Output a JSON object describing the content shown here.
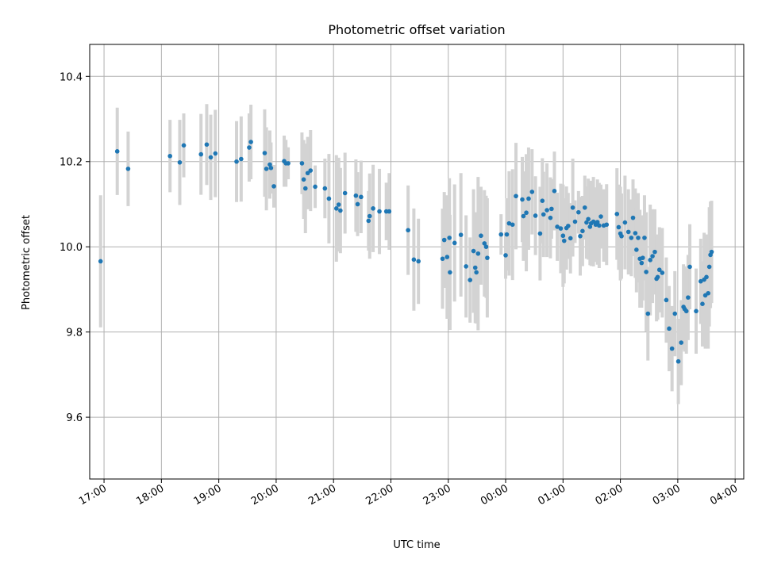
{
  "chart_data": {
    "type": "scatter",
    "title": "Photometric offset variation",
    "xlabel": "UTC time",
    "ylabel": "Photometric offset",
    "x_unit": "hours since 17:00 UTC",
    "xlim": [
      -0.25,
      11.15
    ],
    "ylim": [
      9.455,
      10.475
    ],
    "grid": true,
    "x_ticks": [
      {
        "x": 0,
        "label": "17:00"
      },
      {
        "x": 1,
        "label": "18:00"
      },
      {
        "x": 2,
        "label": "19:00"
      },
      {
        "x": 3,
        "label": "20:00"
      },
      {
        "x": 4,
        "label": "21:00"
      },
      {
        "x": 5,
        "label": "22:00"
      },
      {
        "x": 6,
        "label": "23:00"
      },
      {
        "x": 7,
        "label": "00:00"
      },
      {
        "x": 8,
        "label": "01:00"
      },
      {
        "x": 9,
        "label": "02:00"
      },
      {
        "x": 10,
        "label": "03:00"
      },
      {
        "x": 11,
        "label": "04:00"
      }
    ],
    "y_ticks": [
      {
        "y": 9.6,
        "label": "9.6"
      },
      {
        "y": 9.8,
        "label": "9.8"
      },
      {
        "y": 10.0,
        "label": "10.0"
      },
      {
        "y": 10.2,
        "label": "10.2"
      },
      {
        "y": 10.4,
        "label": "10.4"
      }
    ],
    "colors": {
      "points": "#1f77b4",
      "errorbars": "#d3d3d3",
      "grid": "#b0b0b0"
    },
    "points": [
      [
        -0.06,
        9.966,
        0.31
      ],
      [
        0.23,
        10.224,
        0.205
      ],
      [
        0.42,
        10.183,
        0.175
      ],
      [
        1.15,
        10.213,
        0.17
      ],
      [
        1.32,
        10.198,
        0.2
      ],
      [
        1.39,
        10.238,
        0.15
      ],
      [
        1.69,
        10.217,
        0.19
      ],
      [
        1.79,
        10.24,
        0.19
      ],
      [
        1.86,
        10.21,
        0.2
      ],
      [
        1.94,
        10.219,
        0.205
      ],
      [
        2.31,
        10.2,
        0.19
      ],
      [
        2.39,
        10.206,
        0.2
      ],
      [
        2.53,
        10.233,
        0.16
      ],
      [
        2.56,
        10.246,
        0.175
      ],
      [
        2.8,
        10.22,
        0.205
      ],
      [
        2.83,
        10.183,
        0.195
      ],
      [
        2.89,
        10.193,
        0.16
      ],
      [
        2.91,
        10.185,
        0.12
      ],
      [
        2.96,
        10.142,
        0.1
      ],
      [
        3.14,
        10.201,
        0.12
      ],
      [
        3.17,
        10.196,
        0.11
      ],
      [
        3.21,
        10.196,
        0.075
      ],
      [
        3.45,
        10.196,
        0.145
      ],
      [
        3.48,
        10.158,
        0.185
      ],
      [
        3.51,
        10.137,
        0.21
      ],
      [
        3.55,
        10.173,
        0.17
      ],
      [
        3.6,
        10.179,
        0.19
      ],
      [
        3.68,
        10.141,
        0.1
      ],
      [
        3.85,
        10.137,
        0.14
      ],
      [
        3.92,
        10.113,
        0.21
      ],
      [
        4.05,
        10.09,
        0.25
      ],
      [
        4.09,
        10.099,
        0.22
      ],
      [
        4.12,
        10.085,
        0.2
      ],
      [
        4.2,
        10.126,
        0.19
      ],
      [
        4.39,
        10.12,
        0.17
      ],
      [
        4.42,
        10.1,
        0.15
      ],
      [
        4.48,
        10.117,
        0.17
      ],
      [
        4.61,
        10.061,
        0.14
      ],
      [
        4.63,
        10.072,
        0.2
      ],
      [
        4.69,
        10.09,
        0.205
      ],
      [
        4.8,
        10.083,
        0.2
      ],
      [
        4.92,
        10.083,
        0.135
      ],
      [
        4.97,
        10.083,
        0.18
      ],
      [
        5.3,
        10.039,
        0.21
      ],
      [
        5.4,
        9.97,
        0.24
      ],
      [
        5.48,
        9.966,
        0.2
      ],
      [
        5.9,
        9.972,
        0.235
      ],
      [
        5.93,
        10.016,
        0.225
      ],
      [
        5.98,
        9.976,
        0.29
      ],
      [
        6.02,
        10.021,
        0.28
      ],
      [
        6.03,
        9.94,
        0.27
      ],
      [
        6.11,
        10.009,
        0.275
      ],
      [
        6.22,
        10.028,
        0.29
      ],
      [
        6.31,
        9.954,
        0.24
      ],
      [
        6.38,
        9.922,
        0.2
      ],
      [
        6.44,
        9.99,
        0.29
      ],
      [
        6.47,
        9.951,
        0.26
      ],
      [
        6.49,
        9.94,
        0.24
      ],
      [
        6.52,
        9.984,
        0.36
      ],
      [
        6.57,
        10.026,
        0.23
      ],
      [
        6.63,
        10.008,
        0.25
      ],
      [
        6.66,
        10.0,
        0.24
      ],
      [
        6.68,
        9.974,
        0.28
      ],
      [
        6.92,
        10.029,
        0.095
      ],
      [
        7.0,
        9.98,
        0.11
      ],
      [
        7.02,
        10.029,
        0.17
      ],
      [
        7.06,
        10.055,
        0.245
      ],
      [
        7.12,
        10.052,
        0.26
      ],
      [
        7.18,
        10.119,
        0.25
      ],
      [
        7.29,
        10.111,
        0.2
      ],
      [
        7.31,
        10.072,
        0.21
      ],
      [
        7.36,
        10.08,
        0.275
      ],
      [
        7.4,
        10.113,
        0.24
      ],
      [
        7.46,
        10.129,
        0.2
      ],
      [
        7.52,
        10.073,
        0.185
      ],
      [
        7.6,
        10.031,
        0.22
      ],
      [
        7.64,
        10.108,
        0.2
      ],
      [
        7.66,
        10.076,
        0.2
      ],
      [
        7.72,
        10.086,
        0.22
      ],
      [
        7.78,
        10.068,
        0.19
      ],
      [
        7.8,
        10.089,
        0.14
      ],
      [
        7.85,
        10.131,
        0.185
      ],
      [
        7.9,
        10.047,
        0.16
      ],
      [
        7.96,
        10.043,
        0.21
      ],
      [
        8.0,
        10.026,
        0.24
      ],
      [
        8.02,
        10.014,
        0.2
      ],
      [
        8.06,
        10.044,
        0.195
      ],
      [
        8.09,
        10.049,
        0.155
      ],
      [
        8.13,
        10.02,
        0.165
      ],
      [
        8.17,
        10.092,
        0.23
      ],
      [
        8.21,
        10.059,
        0.1
      ],
      [
        8.27,
        10.081,
        0.1
      ],
      [
        8.3,
        10.025,
        0.185
      ],
      [
        8.34,
        10.037,
        0.165
      ],
      [
        8.38,
        10.092,
        0.15
      ],
      [
        8.41,
        10.057,
        0.17
      ],
      [
        8.44,
        10.065,
        0.19
      ],
      [
        8.47,
        10.047,
        0.18
      ],
      [
        8.49,
        10.055,
        0.2
      ],
      [
        8.53,
        10.059,
        0.21
      ],
      [
        8.57,
        10.052,
        0.175
      ],
      [
        8.6,
        10.058,
        0.2
      ],
      [
        8.63,
        10.05,
        0.2
      ],
      [
        8.66,
        10.071,
        0.15
      ],
      [
        8.71,
        10.05,
        0.17
      ],
      [
        8.76,
        10.052,
        0.19
      ],
      [
        8.94,
        10.077,
        0.215
      ],
      [
        8.97,
        10.046,
        0.2
      ],
      [
        9.0,
        10.031,
        0.22
      ],
      [
        9.02,
        10.025,
        0.2
      ],
      [
        9.08,
        10.057,
        0.22
      ],
      [
        9.14,
        10.035,
        0.2
      ],
      [
        9.19,
        10.021,
        0.18
      ],
      [
        9.22,
        10.068,
        0.18
      ],
      [
        9.26,
        10.032,
        0.21
      ],
      [
        9.28,
        9.993,
        0.2
      ],
      [
        9.31,
        10.021,
        0.21
      ],
      [
        9.34,
        9.972,
        0.23
      ],
      [
        9.37,
        9.962,
        0.21
      ],
      [
        9.39,
        9.974,
        0.2
      ],
      [
        9.42,
        10.021,
        0.2
      ],
      [
        9.45,
        9.941,
        0.28
      ],
      [
        9.48,
        9.843,
        0.22
      ],
      [
        9.52,
        9.969,
        0.26
      ],
      [
        9.56,
        9.978,
        0.22
      ],
      [
        9.6,
        9.988,
        0.2
      ],
      [
        9.63,
        9.925,
        0.2
      ],
      [
        9.65,
        9.929,
        0.2
      ],
      [
        9.68,
        9.946,
        0.2
      ],
      [
        9.73,
        9.939,
        0.21
      ],
      [
        9.8,
        9.875,
        0.2
      ],
      [
        9.85,
        9.808,
        0.2
      ],
      [
        9.9,
        9.761,
        0.2
      ],
      [
        9.95,
        9.843,
        0.2
      ],
      [
        10.01,
        9.731,
        0.2
      ],
      [
        10.06,
        9.775,
        0.2
      ],
      [
        10.1,
        9.859,
        0.2
      ],
      [
        10.12,
        9.854,
        0.2
      ],
      [
        10.15,
        9.849,
        0.2
      ],
      [
        10.18,
        9.881,
        0.2
      ],
      [
        10.21,
        9.953,
        0.2
      ],
      [
        10.32,
        9.849,
        0.2
      ],
      [
        10.4,
        9.919,
        0.2
      ],
      [
        10.43,
        9.866,
        0.2
      ],
      [
        10.46,
        9.923,
        0.22
      ],
      [
        10.48,
        9.886,
        0.25
      ],
      [
        10.5,
        9.929,
        0.2
      ],
      [
        10.53,
        9.891,
        0.26
      ],
      [
        10.55,
        9.953,
        0.28
      ],
      [
        10.57,
        9.981,
        0.25
      ],
      [
        10.59,
        9.988,
        0.24
      ]
    ]
  }
}
